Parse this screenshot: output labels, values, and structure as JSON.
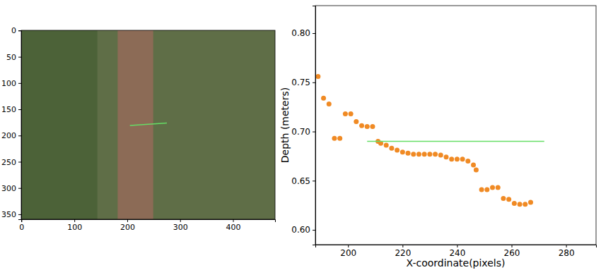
{
  "chart_data": [
    {
      "type": "image",
      "xlim": [
        -0.5,
        479.5
      ],
      "xticks": [
        0,
        100,
        200,
        300,
        400
      ],
      "ylim": [
        359.5,
        -0.5
      ],
      "yticks": [
        0,
        50,
        100,
        150,
        200,
        250,
        300,
        350
      ],
      "series": [
        {
          "type": "line",
          "color": "#66dd66",
          "x": [
            205,
            275
          ],
          "values": [
            181,
            176
          ]
        }
      ]
    },
    {
      "type": "scatter",
      "x_label": "X-coordinate(pixels)",
      "y_label": "Depth (meters)",
      "xlim": [
        188,
        291
      ],
      "xticks": [
        200,
        220,
        240,
        260,
        280
      ],
      "ylim": [
        0.585,
        0.828
      ],
      "yticks": [
        {
          "value": 0.6,
          "label": "0.60"
        },
        {
          "value": 0.65,
          "label": "0.65"
        },
        {
          "value": 0.7,
          "label": "0.70"
        },
        {
          "value": 0.75,
          "label": "0.75"
        },
        {
          "value": 0.8,
          "label": "0.80"
        }
      ],
      "series": [
        {
          "type": "scatter",
          "marker": "circle",
          "color": "#f08a24",
          "x": [
            189,
            191,
            193,
            195,
            197,
            199,
            201,
            203,
            205,
            207,
            209,
            211,
            212,
            214,
            216,
            218,
            220,
            222,
            224,
            226,
            228,
            230,
            232,
            234,
            236,
            238,
            240,
            242,
            244,
            246,
            247,
            249,
            251,
            253,
            255,
            257,
            259,
            261,
            263,
            265,
            267
          ],
          "values": [
            0.756,
            0.734,
            0.728,
            0.693,
            0.693,
            0.718,
            0.718,
            0.71,
            0.706,
            0.705,
            0.705,
            0.69,
            0.688,
            0.686,
            0.683,
            0.681,
            0.679,
            0.678,
            0.677,
            0.677,
            0.677,
            0.677,
            0.677,
            0.676,
            0.674,
            0.672,
            0.672,
            0.672,
            0.67,
            0.666,
            0.661,
            0.641,
            0.641,
            0.643,
            0.643,
            0.632,
            0.631,
            0.627,
            0.626,
            0.626,
            0.628
          ]
        },
        {
          "type": "line",
          "color": "#66dd66",
          "x": [
            207,
            272
          ],
          "values": [
            0.69,
            0.69
          ]
        }
      ]
    }
  ]
}
